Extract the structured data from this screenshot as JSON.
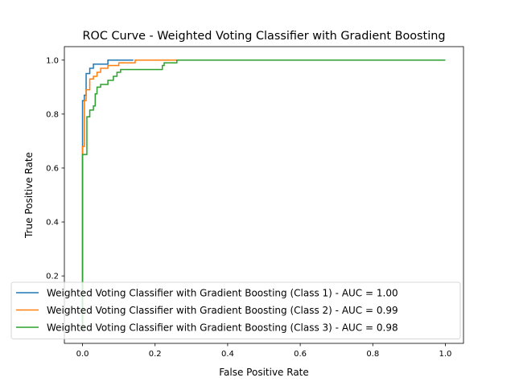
{
  "chart_data": {
    "type": "line",
    "title": "ROC Curve - Weighted Voting Classifier with Gradient Boosting",
    "xlabel": "False Positive Rate",
    "ylabel": "True Positive Rate",
    "xlim": [
      -0.05,
      1.05
    ],
    "ylim": [
      -0.05,
      1.05
    ],
    "xticks": [
      0.0,
      0.2,
      0.4,
      0.6,
      0.8,
      1.0
    ],
    "yticks": [
      0.2,
      0.4,
      0.6,
      0.8,
      1.0
    ],
    "xtick_labels": [
      "0.0",
      "0.2",
      "0.4",
      "0.6",
      "0.8",
      "1.0"
    ],
    "ytick_labels": [
      "0.2",
      "0.4",
      "0.6",
      "0.8",
      "1.0"
    ],
    "grid": false,
    "legend_position": "lower-right",
    "series": [
      {
        "name": "Weighted Voting Classifier with Gradient Boosting (Class 1) - AUC = 1.00",
        "color": "#1f77b4",
        "x": [
          0.0,
          0.0,
          0.005,
          0.005,
          0.01,
          0.01,
          0.02,
          0.02,
          0.03,
          0.03,
          0.07,
          0.07,
          0.14,
          0.14
        ],
        "y": [
          0.0,
          0.85,
          0.85,
          0.87,
          0.87,
          0.95,
          0.95,
          0.97,
          0.97,
          0.985,
          0.985,
          1.0,
          1.0,
          1.0
        ]
      },
      {
        "name": "Weighted Voting Classifier with Gradient Boosting (Class 2) - AUC = 0.99",
        "color": "#ff7f0e",
        "x": [
          0.0,
          0.0,
          0.005,
          0.005,
          0.01,
          0.01,
          0.02,
          0.02,
          0.03,
          0.03,
          0.04,
          0.04,
          0.05,
          0.05,
          0.07,
          0.07,
          0.1,
          0.1,
          0.145,
          0.145,
          0.26
        ],
        "y": [
          0.0,
          0.68,
          0.68,
          0.85,
          0.85,
          0.89,
          0.89,
          0.93,
          0.93,
          0.94,
          0.94,
          0.955,
          0.955,
          0.97,
          0.97,
          0.98,
          0.98,
          0.99,
          0.99,
          1.0,
          1.0
        ]
      },
      {
        "name": "Weighted Voting Classifier with Gradient Boosting (Class 3) - AUC = 0.98",
        "color": "#2ca02c",
        "x": [
          0.0,
          0.0,
          0.0,
          0.012,
          0.012,
          0.02,
          0.02,
          0.03,
          0.03,
          0.035,
          0.035,
          0.04,
          0.04,
          0.05,
          0.05,
          0.07,
          0.07,
          0.085,
          0.085,
          0.095,
          0.095,
          0.105,
          0.105,
          0.22,
          0.22,
          0.225,
          0.225,
          0.26,
          0.26,
          1.0
        ],
        "y": [
          0.0,
          0.1,
          0.65,
          0.65,
          0.79,
          0.79,
          0.815,
          0.815,
          0.83,
          0.83,
          0.875,
          0.875,
          0.9,
          0.9,
          0.91,
          0.91,
          0.925,
          0.925,
          0.94,
          0.94,
          0.955,
          0.955,
          0.965,
          0.965,
          0.98,
          0.98,
          0.99,
          0.99,
          1.0,
          1.0
        ]
      }
    ]
  }
}
